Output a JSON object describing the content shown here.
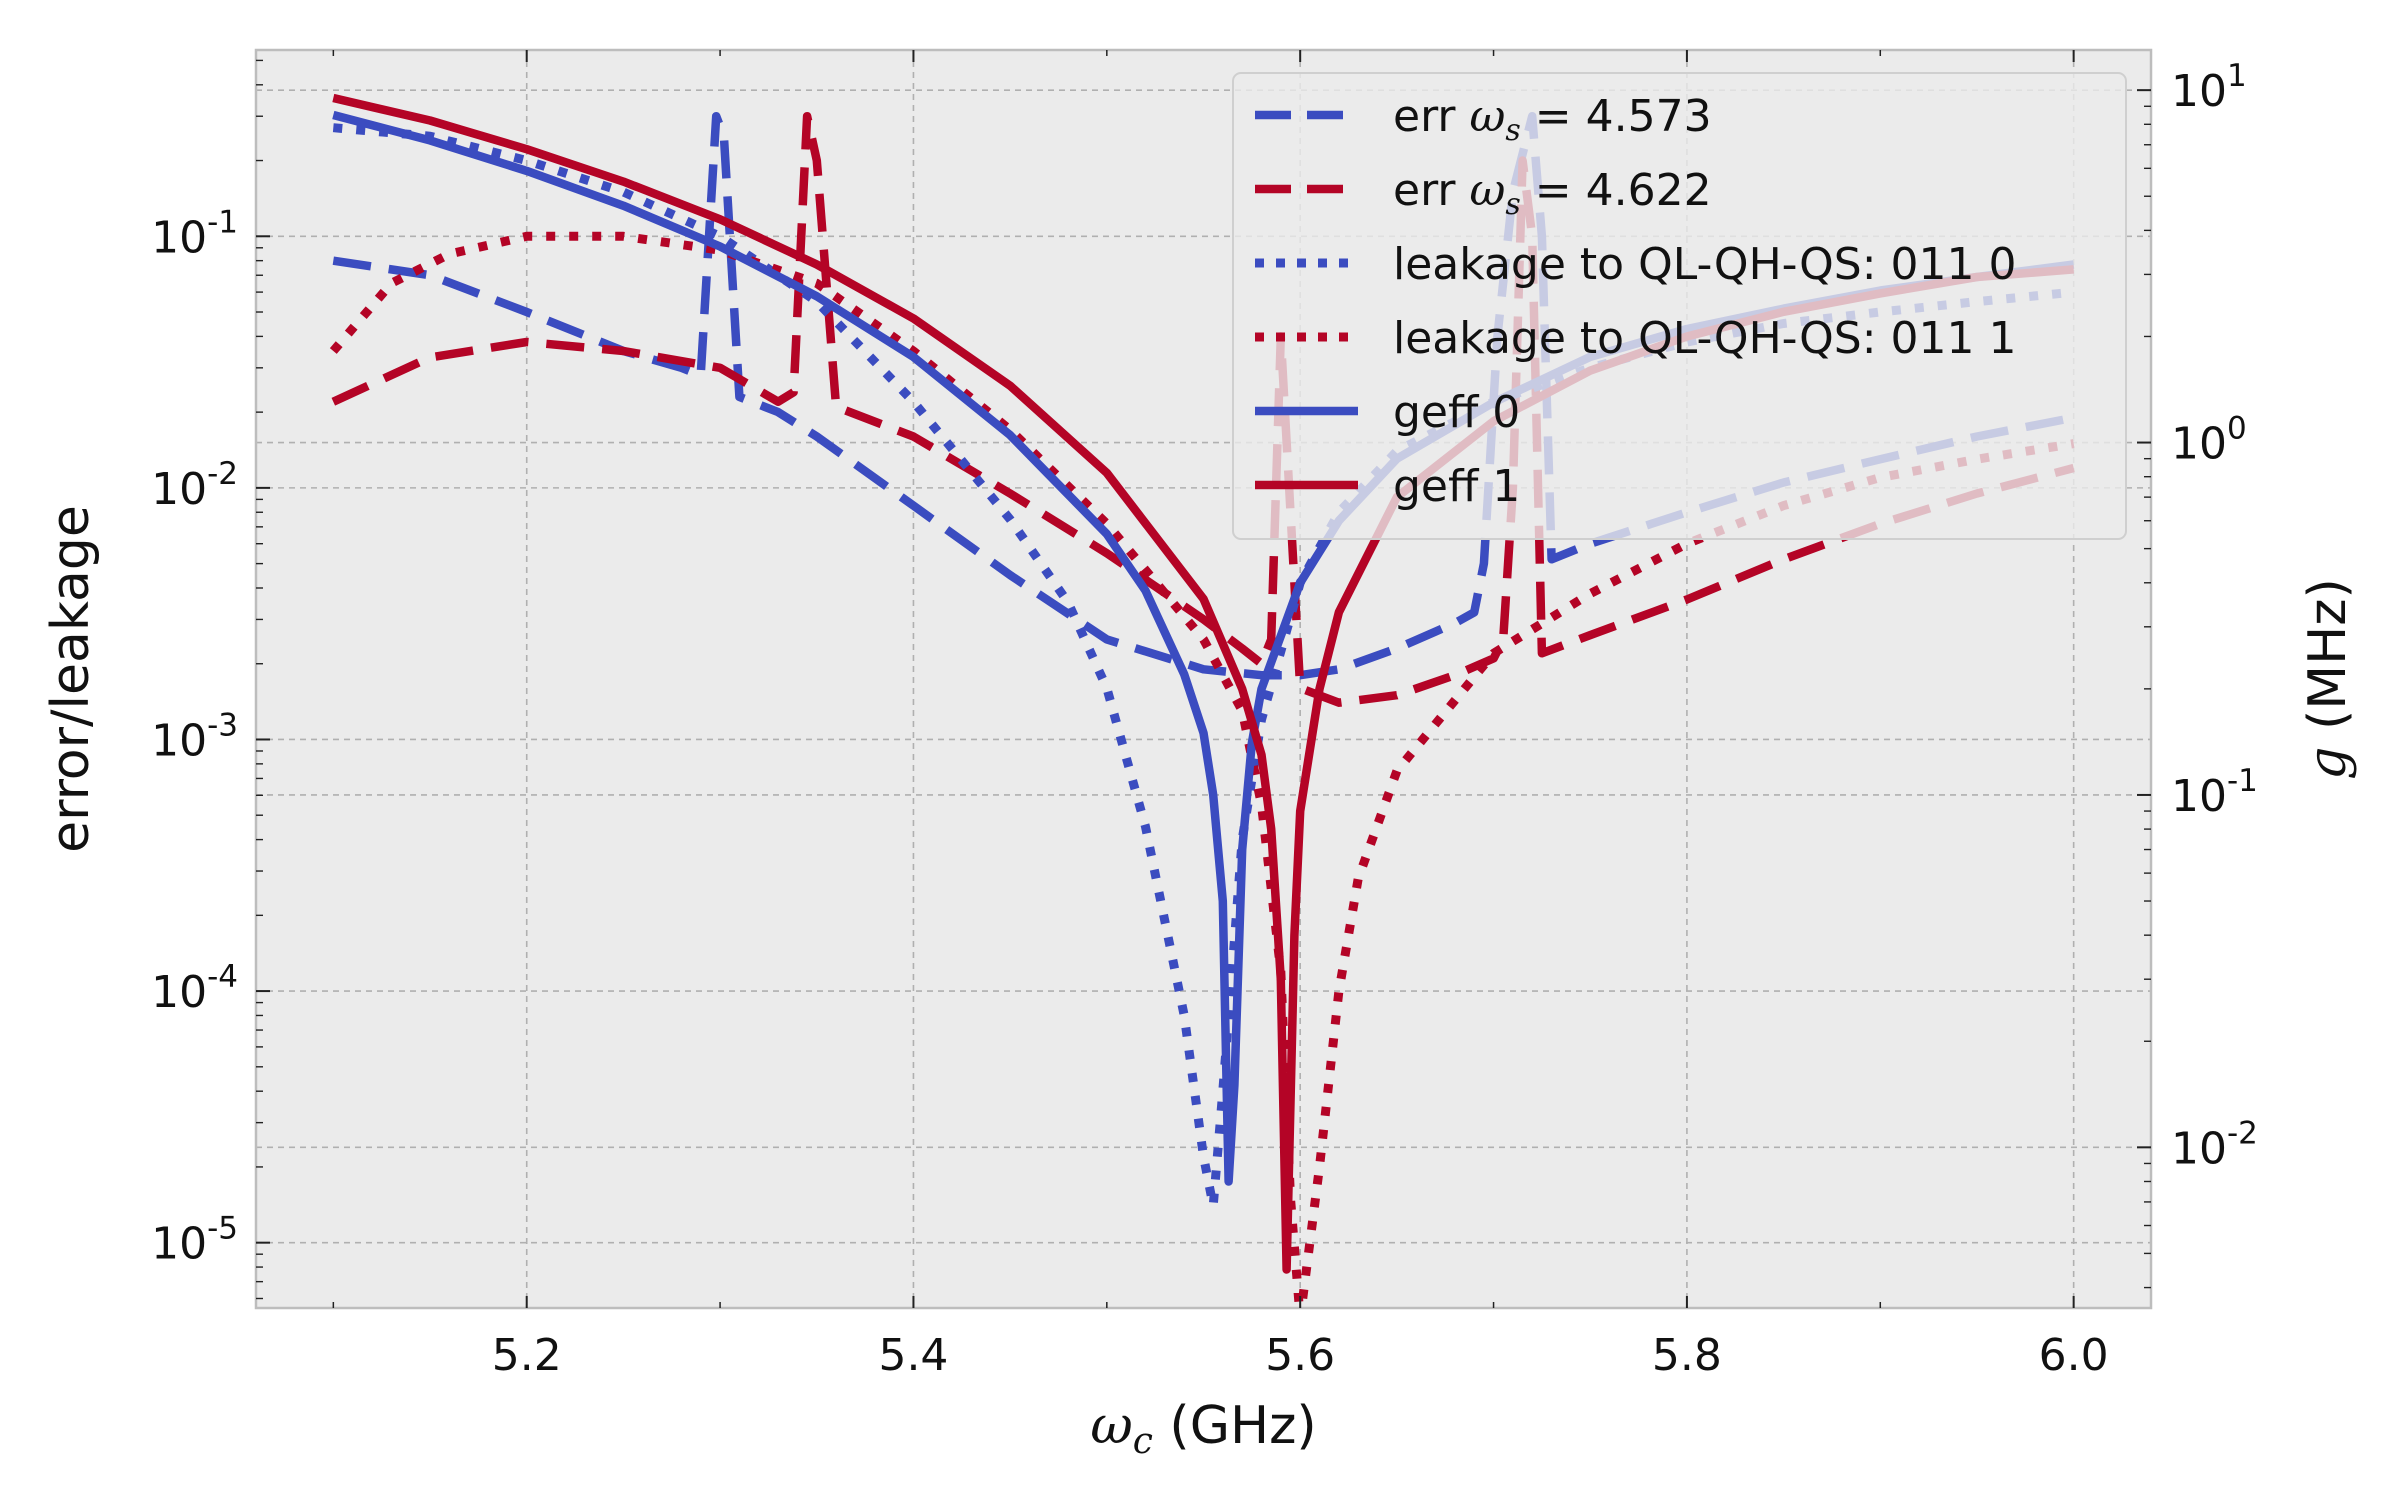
{
  "chart_data": {
    "type": "line",
    "xlabel_var": "ω",
    "xlabel_sub": "c",
    "xlabel_unit": " (GHz)",
    "ylabel_left": "error/leakage",
    "ylabel_right_var": "g",
    "ylabel_right_unit": " (MHz)",
    "xlim": [
      5.06,
      6.04
    ],
    "ylim_left": [
      5.5e-06,
      0.55
    ],
    "ylim_right": [
      0.0035,
      13
    ],
    "y_left_scale": "log",
    "y_right_scale": "log",
    "grid": true,
    "legend_position": "top-right",
    "x_ticks": [
      {
        "value": 5.2,
        "label": "5.2"
      },
      {
        "value": 5.4,
        "label": "5.4"
      },
      {
        "value": 5.6,
        "label": "5.6"
      },
      {
        "value": 5.8,
        "label": "5.8"
      },
      {
        "value": 6.0,
        "label": "6.0"
      }
    ],
    "y_left_ticks": [
      {
        "value": 1e-05,
        "base": "10",
        "exp": "-5"
      },
      {
        "value": 0.0001,
        "base": "10",
        "exp": "-4"
      },
      {
        "value": 0.001,
        "base": "10",
        "exp": "-3"
      },
      {
        "value": 0.01,
        "base": "10",
        "exp": "-2"
      },
      {
        "value": 0.1,
        "base": "10",
        "exp": "-1"
      }
    ],
    "y_right_ticks": [
      {
        "value": 0.01,
        "base": "10",
        "exp": "-2"
      },
      {
        "value": 0.1,
        "base": "10",
        "exp": "-1"
      },
      {
        "value": 1,
        "base": "10",
        "exp": "0"
      },
      {
        "value": 10,
        "base": "10",
        "exp": "1"
      }
    ],
    "colors": {
      "blue": "#3b4cc0",
      "red": "#b40426",
      "grid": "#b0b0b0",
      "background": "#ebebeb"
    },
    "series": [
      {
        "name": "err ω_s = 4.573",
        "legend_prefix": "err ",
        "legend_var": "ω",
        "legend_sub": "s",
        "legend_suffix": " = 4.573",
        "color": "blue",
        "style": "dashed",
        "axis": "left",
        "x": [
          5.1,
          5.15,
          5.2,
          5.25,
          5.28,
          5.29,
          5.298,
          5.302,
          5.31,
          5.33,
          5.35,
          5.4,
          5.45,
          5.5,
          5.55,
          5.58,
          5.6,
          5.62,
          5.65,
          5.68,
          5.69,
          5.695,
          5.702,
          5.71,
          5.72,
          5.725,
          5.73,
          5.75,
          5.8,
          5.85,
          5.9,
          5.95,
          6.0
        ],
        "y": [
          0.08,
          0.07,
          0.05,
          0.035,
          0.03,
          0.028,
          0.3,
          0.25,
          0.023,
          0.02,
          0.016,
          0.0085,
          0.0045,
          0.0025,
          0.0019,
          0.0018,
          0.0018,
          0.0019,
          0.0023,
          0.0029,
          0.0032,
          0.005,
          0.04,
          0.15,
          0.3,
          0.1,
          0.0052,
          0.006,
          0.008,
          0.0105,
          0.013,
          0.016,
          0.019
        ]
      },
      {
        "name": "err ω_s = 4.622",
        "legend_prefix": "err ",
        "legend_var": "ω",
        "legend_sub": "s",
        "legend_suffix": " = 4.622",
        "color": "red",
        "style": "dashed",
        "axis": "left",
        "x": [
          5.1,
          5.15,
          5.2,
          5.25,
          5.3,
          5.33,
          5.338,
          5.345,
          5.35,
          5.36,
          5.4,
          5.45,
          5.5,
          5.55,
          5.57,
          5.58,
          5.585,
          5.59,
          5.6,
          5.62,
          5.65,
          5.68,
          5.7,
          5.705,
          5.71,
          5.715,
          5.72,
          5.725,
          5.75,
          5.8,
          5.85,
          5.9,
          5.95,
          6.0
        ],
        "y": [
          0.022,
          0.033,
          0.038,
          0.035,
          0.03,
          0.022,
          0.024,
          0.3,
          0.2,
          0.021,
          0.016,
          0.0095,
          0.0055,
          0.003,
          0.0023,
          0.002,
          0.0025,
          0.04,
          0.0016,
          0.0014,
          0.0015,
          0.0018,
          0.0021,
          0.0025,
          0.01,
          0.2,
          0.1,
          0.0022,
          0.0026,
          0.0036,
          0.0052,
          0.0072,
          0.0095,
          0.012
        ]
      },
      {
        "name": "leakage to QL-QH-QS: 011 0",
        "legend_label": "leakage to QL-QH-QS: 011 0",
        "color": "blue",
        "style": "dotted",
        "axis": "left",
        "x": [
          5.1,
          5.15,
          5.2,
          5.25,
          5.3,
          5.35,
          5.4,
          5.45,
          5.48,
          5.5,
          5.52,
          5.54,
          5.55,
          5.555,
          5.56,
          5.57,
          5.58,
          5.6,
          5.62,
          5.65,
          5.7,
          5.75,
          5.8,
          5.85,
          5.9,
          5.95,
          6.0
        ],
        "y": [
          0.27,
          0.25,
          0.2,
          0.15,
          0.1,
          0.055,
          0.022,
          0.0075,
          0.0035,
          0.0016,
          0.00045,
          8e-05,
          2.2e-05,
          1.4e-05,
          4e-05,
          0.0004,
          0.0012,
          0.0042,
          0.008,
          0.014,
          0.022,
          0.03,
          0.038,
          0.045,
          0.05,
          0.055,
          0.06
        ]
      },
      {
        "name": "leakage to QL-QH-QS: 011 1",
        "legend_label": "leakage to QL-QH-QS: 011 1",
        "color": "red",
        "style": "dotted",
        "axis": "left",
        "x": [
          5.1,
          5.13,
          5.16,
          5.2,
          5.25,
          5.3,
          5.35,
          5.4,
          5.45,
          5.5,
          5.55,
          5.57,
          5.58,
          5.59,
          5.595,
          5.6,
          5.61,
          5.62,
          5.63,
          5.65,
          5.7,
          5.75,
          5.8,
          5.85,
          5.9,
          5.95,
          6.0
        ],
        "y": [
          0.035,
          0.065,
          0.085,
          0.1,
          0.1,
          0.088,
          0.065,
          0.035,
          0.017,
          0.0072,
          0.0025,
          0.0013,
          0.00055,
          0.00012,
          1.5e-05,
          5e-06,
          2e-05,
          0.0001,
          0.00028,
          0.00075,
          0.0022,
          0.0038,
          0.006,
          0.0085,
          0.011,
          0.013,
          0.015
        ]
      },
      {
        "name": "geff 0",
        "legend_label": "geff 0",
        "color": "blue",
        "style": "solid",
        "axis": "right",
        "x": [
          5.1,
          5.15,
          5.2,
          5.25,
          5.3,
          5.35,
          5.4,
          5.45,
          5.5,
          5.52,
          5.54,
          5.55,
          5.555,
          5.56,
          5.563,
          5.566,
          5.57,
          5.575,
          5.58,
          5.6,
          5.62,
          5.65,
          5.7,
          5.75,
          5.8,
          5.85,
          5.9,
          5.95,
          6.0
        ],
        "y": [
          8.5,
          7.2,
          5.9,
          4.7,
          3.6,
          2.6,
          1.75,
          1.05,
          0.55,
          0.38,
          0.22,
          0.15,
          0.1,
          0.05,
          0.008,
          0.015,
          0.07,
          0.14,
          0.2,
          0.4,
          0.6,
          0.9,
          1.3,
          1.75,
          2.1,
          2.4,
          2.7,
          2.95,
          3.2
        ]
      },
      {
        "name": "geff 1",
        "legend_label": "geff 1",
        "color": "red",
        "style": "solid",
        "axis": "right",
        "x": [
          5.1,
          5.15,
          5.2,
          5.25,
          5.3,
          5.35,
          5.4,
          5.45,
          5.5,
          5.55,
          5.57,
          5.58,
          5.585,
          5.59,
          5.593,
          5.597,
          5.6,
          5.61,
          5.62,
          5.65,
          5.7,
          5.75,
          5.8,
          5.85,
          5.9,
          5.95,
          6.0
        ],
        "y": [
          9.5,
          8.2,
          6.8,
          5.5,
          4.3,
          3.2,
          2.25,
          1.45,
          0.82,
          0.36,
          0.2,
          0.13,
          0.08,
          0.03,
          0.0045,
          0.04,
          0.09,
          0.2,
          0.33,
          0.7,
          1.15,
          1.6,
          2.0,
          2.35,
          2.65,
          2.95,
          3.1
        ]
      }
    ]
  }
}
